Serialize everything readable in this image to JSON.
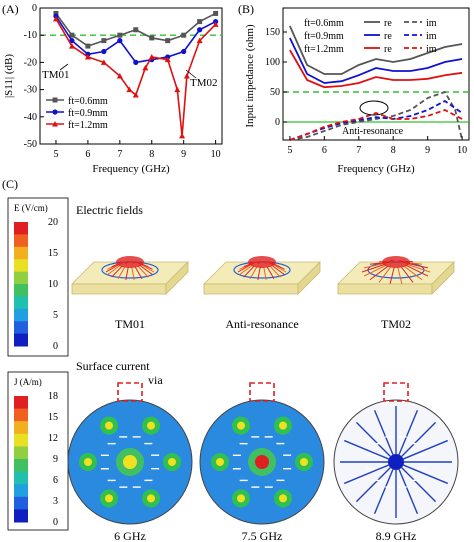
{
  "panels": {
    "A": "(A)",
    "B": "(B)",
    "C": "(C)"
  },
  "chart_data": [
    {
      "type": "line",
      "xlabel": "Frequency (GHz)",
      "ylabel": "|S11| (dB)",
      "xlim": [
        4.5,
        10.2
      ],
      "ylim": [
        -50,
        0
      ],
      "xticks": [
        "5",
        "6",
        "7",
        "8",
        "9",
        "10"
      ],
      "yticks": [
        "0",
        "-10",
        "-20",
        "-30",
        "-40",
        "-50"
      ],
      "legend_placement": "bottom-left",
      "reference_line_db": -10,
      "annotations": {
        "tm01": "TM01",
        "tm02": "TM02"
      },
      "series": [
        {
          "name": "ft=0.6mm",
          "color": "#555555",
          "marker": "square",
          "x": [
            5,
            5.5,
            6,
            6.5,
            7,
            7.5,
            8,
            8.5,
            9,
            9.5,
            10
          ],
          "y": [
            -2,
            -10,
            -14,
            -12,
            -10,
            -8,
            -11,
            -12,
            -10,
            -5,
            -2
          ]
        },
        {
          "name": "ft=0.9mm",
          "color": "#1010d0",
          "marker": "circle",
          "x": [
            5,
            5.5,
            6,
            6.5,
            7,
            7.5,
            8,
            8.5,
            9,
            9.5,
            10
          ],
          "y": [
            -3,
            -12,
            -17,
            -16,
            -12,
            -20,
            -19,
            -18,
            -16,
            -8,
            -5
          ]
        },
        {
          "name": "ft=1.2mm",
          "color": "#e01010",
          "marker": "triangle",
          "x": [
            5,
            5.5,
            6,
            6.5,
            7,
            7.3,
            7.5,
            7.8,
            8,
            8.5,
            8.8,
            8.95,
            9.1,
            9.5,
            10
          ],
          "y": [
            -4,
            -14,
            -18,
            -20,
            -25,
            -30,
            -32,
            -22,
            -18,
            -19,
            -30,
            -47,
            -25,
            -12,
            -6
          ]
        }
      ]
    },
    {
      "type": "line",
      "xlabel": "Frequency (GHz)",
      "ylabel": "Input impedance (ohm)",
      "xlim": [
        4.8,
        10.2
      ],
      "ylim": [
        -30,
        190
      ],
      "xticks": [
        "5",
        "6",
        "7",
        "8",
        "9",
        "10"
      ],
      "yticks": [
        "0",
        "50",
        "100",
        "150"
      ],
      "reference_line": 50,
      "annotation": "Anti-resonance",
      "legend": {
        "re": "re",
        "im": "im"
      },
      "series": [
        {
          "name": "ft=0.6mm",
          "part": "re",
          "color": "#555555",
          "x": [
            5,
            5.5,
            6,
            6.5,
            7,
            7.5,
            8,
            8.5,
            9,
            9.5,
            10
          ],
          "y": [
            160,
            95,
            80,
            80,
            95,
            105,
            100,
            105,
            115,
            125,
            130
          ]
        },
        {
          "name": "ft=0.6mm",
          "part": "im",
          "color": "#555555",
          "x": [
            5,
            5.5,
            6,
            6.5,
            7,
            7.5,
            8,
            8.5,
            9,
            9.5,
            9.8,
            10
          ],
          "y": [
            -40,
            -25,
            -15,
            -5,
            0,
            5,
            10,
            20,
            40,
            50,
            20,
            -30
          ]
        },
        {
          "name": "ft=0.9mm",
          "part": "re",
          "color": "#1010d0",
          "x": [
            5,
            5.5,
            6,
            6.5,
            7,
            7.5,
            8,
            8.5,
            9,
            9.5,
            10
          ],
          "y": [
            140,
            80,
            65,
            68,
            78,
            90,
            85,
            85,
            90,
            100,
            105
          ]
        },
        {
          "name": "ft=0.9mm",
          "part": "im",
          "color": "#1010d0",
          "x": [
            5,
            5.5,
            6,
            6.5,
            7,
            7.5,
            8,
            8.5,
            9,
            9.5,
            10
          ],
          "y": [
            -40,
            -20,
            -10,
            -2,
            3,
            8,
            5,
            10,
            20,
            35,
            15
          ]
        },
        {
          "name": "ft=1.2mm",
          "part": "re",
          "color": "#e01010",
          "x": [
            5,
            5.5,
            6,
            6.5,
            7,
            7.5,
            8,
            8.5,
            9,
            9.5,
            10
          ],
          "y": [
            120,
            70,
            58,
            60,
            65,
            75,
            70,
            70,
            72,
            78,
            82
          ]
        },
        {
          "name": "ft=1.2mm",
          "part": "im",
          "color": "#e01010",
          "x": [
            5,
            5.5,
            6,
            6.5,
            7,
            7.5,
            8,
            8.5,
            9,
            9.5,
            10
          ],
          "y": [
            -40,
            -20,
            -8,
            0,
            5,
            15,
            5,
            5,
            10,
            20,
            5
          ]
        }
      ]
    }
  ],
  "panelC": {
    "colorbar_e": {
      "title": "E  (V/cm)",
      "ticks": [
        "20",
        "15",
        "10",
        "5",
        "0"
      ]
    },
    "colorbar_j": {
      "title": "J  (A/m)",
      "ticks": [
        "18",
        "15",
        "12",
        "9",
        "6",
        "3",
        "0"
      ]
    },
    "electric_fields_title": "Electric fields",
    "surface_current_title": "Surface current",
    "via_label": "via",
    "mode_labels": [
      "TM01",
      "Anti-resonance",
      "TM02"
    ],
    "freq_labels": [
      "6 GHz",
      "7.5 GHz",
      "8.9 GHz"
    ],
    "colors": {
      "red": "#e02020",
      "blue": "#2060e0",
      "cyan": "#20c0d0",
      "green": "#40c040",
      "yellow": "#f0e020",
      "orange": "#f09020"
    }
  }
}
